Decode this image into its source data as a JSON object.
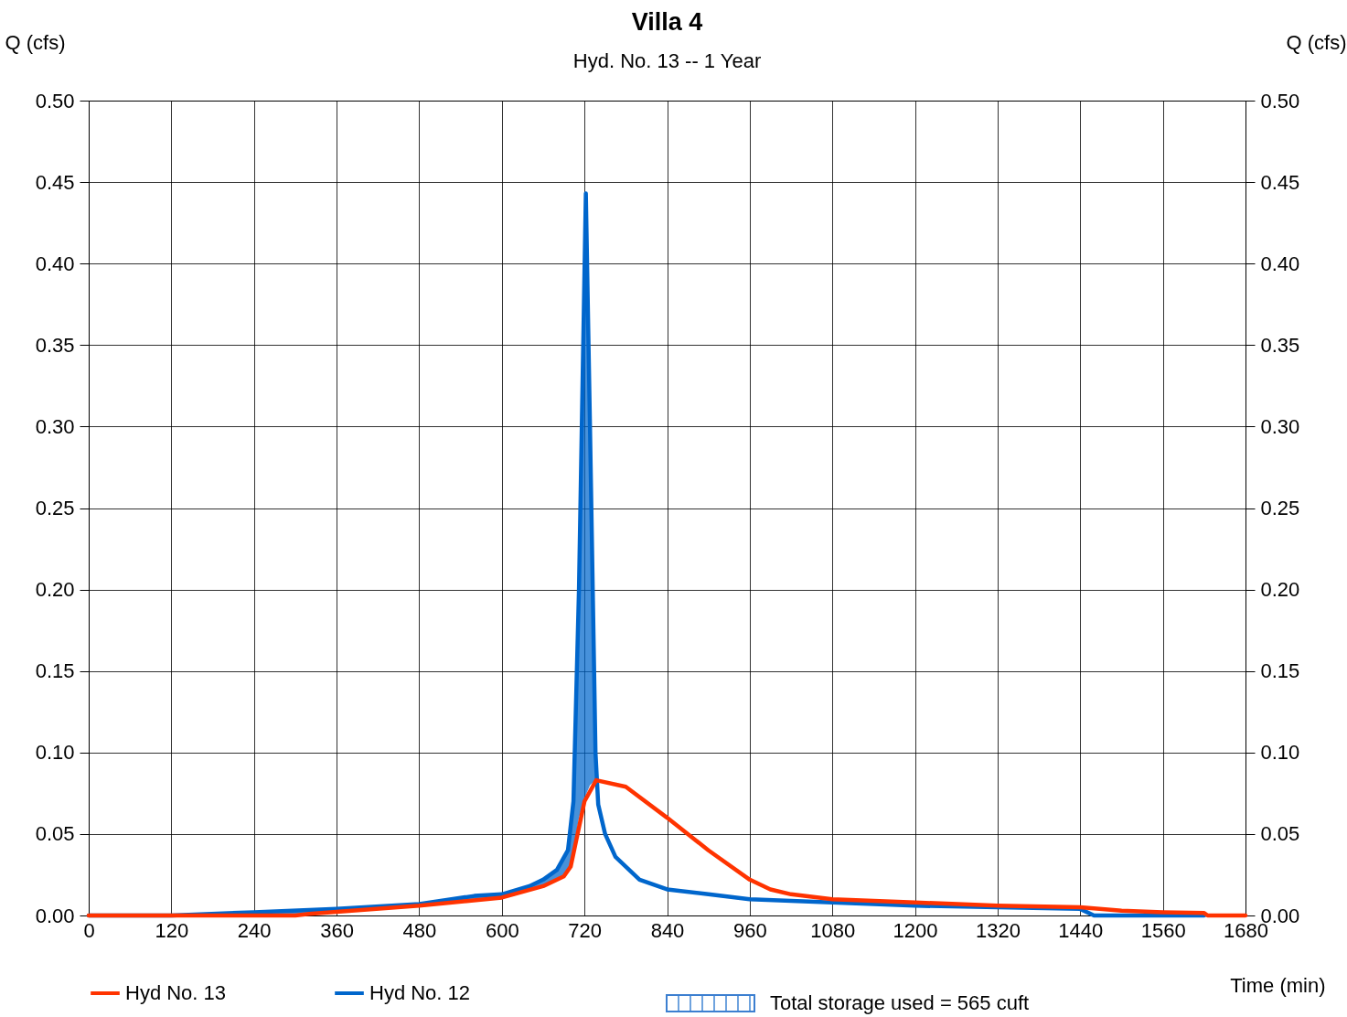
{
  "chart_data": {
    "type": "line",
    "title": "Villa 4",
    "subtitle": "Hyd. No. 13 -- 1 Year",
    "xlabel": "Time (min)",
    "ylabel": "Q (cfs)",
    "y2label": "Q (cfs)",
    "xlim": [
      0,
      1680
    ],
    "xticks": [
      0,
      120,
      240,
      360,
      480,
      600,
      720,
      840,
      960,
      1080,
      1200,
      1320,
      1440,
      1560,
      1680
    ],
    "ylim": [
      0,
      0.5
    ],
    "yticks": [
      {
        "value": 0,
        "label": "0.00"
      },
      0.05,
      {
        "value": 0.1,
        "label": "0.10"
      },
      0.15,
      {
        "value": 0.2,
        "label": "0.20"
      },
      0.25,
      {
        "value": 0.3,
        "label": "0.30"
      },
      0.35,
      {
        "value": 0.4,
        "label": "0.40"
      },
      0.45,
      {
        "value": 0.5,
        "label": "0.50"
      }
    ],
    "y2lim": [
      0,
      0.5
    ],
    "y2ticks": [
      {
        "value": 0,
        "label": "0.00"
      },
      0.05,
      {
        "value": 0.1,
        "label": "0.10"
      },
      0.15,
      {
        "value": 0.2,
        "label": "0.20"
      },
      0.25,
      {
        "value": 0.3,
        "label": "0.30"
      },
      0.35,
      {
        "value": 0.4,
        "label": "0.40"
      },
      0.45,
      {
        "value": 0.5,
        "label": "0.50"
      }
    ],
    "grid": true,
    "legend": "bottom",
    "line_style": "solid",
    "marker": "none",
    "series": [
      {
        "name": "Hyd No. 13",
        "type": "line",
        "color": "#ff3300",
        "x": [
          0,
          300,
          320,
          480,
          600,
          660,
          690,
          700,
          710,
          720,
          737,
          780,
          840,
          900,
          960,
          990,
          1020,
          1080,
          1200,
          1320,
          1440,
          1500,
          1560,
          1620,
          1625,
          1680
        ],
        "values": [
          0,
          0,
          0.001,
          0.006,
          0.011,
          0.018,
          0.024,
          0.03,
          0.05,
          0.07,
          0.083,
          0.079,
          0.06,
          0.04,
          0.022,
          0.016,
          0.013,
          0.01,
          0.008,
          0.006,
          0.005,
          0.003,
          0.002,
          0.0015,
          0,
          0
        ]
      },
      {
        "name": "Hyd No. 12",
        "type": "line",
        "color": "#0066cc",
        "x": [
          0,
          120,
          240,
          360,
          480,
          560,
          600,
          640,
          660,
          680,
          696,
          704,
          712,
          722,
          728,
          736,
          740,
          750,
          765,
          800,
          840,
          900,
          960,
          1080,
          1200,
          1320,
          1440,
          1460,
          1620
        ],
        "values": [
          0,
          0,
          0.002,
          0.004,
          0.007,
          0.012,
          0.013,
          0.018,
          0.022,
          0.028,
          0.04,
          0.07,
          0.2,
          0.443,
          0.3,
          0.1,
          0.068,
          0.05,
          0.036,
          0.022,
          0.016,
          0.013,
          0.01,
          0.008,
          0.006,
          0.005,
          0.004,
          0,
          0
        ],
        "lower": [
          null,
          0,
          0,
          0.002,
          0.006,
          0.009,
          0.011,
          0.015,
          0.018,
          0.022,
          0.027,
          0.04,
          0.06,
          0.074,
          0.08,
          0.083,
          0.083,
          null,
          null,
          null,
          null,
          null,
          null,
          null,
          null,
          null,
          null,
          null,
          null
        ],
        "upper": [
          null,
          0,
          0.002,
          0.004,
          0.007,
          0.012,
          0.013,
          0.018,
          0.022,
          0.028,
          0.04,
          0.07,
          0.2,
          0.443,
          0.3,
          0.1,
          0.068,
          null,
          null,
          null,
          null,
          null,
          null,
          null,
          null,
          null,
          null,
          null,
          null
        ]
      }
    ],
    "annotations": [
      "Total storage used = 565 cuft"
    ]
  }
}
